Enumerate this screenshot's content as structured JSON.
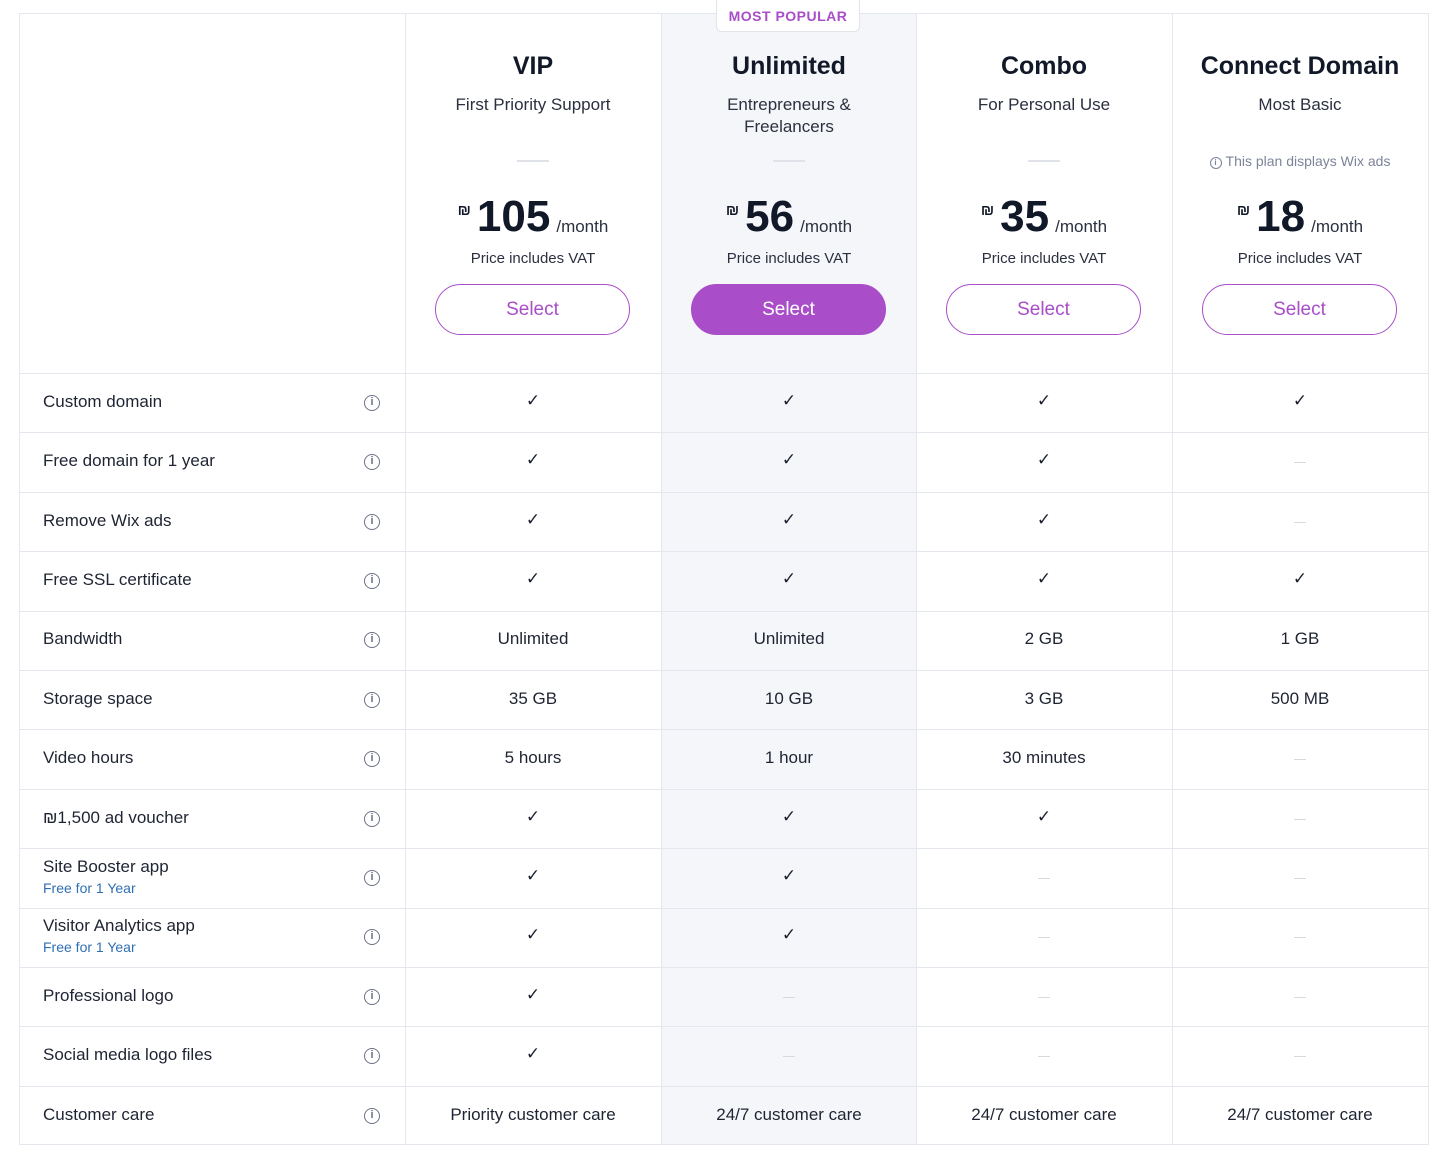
{
  "popular_badge": "MOST POPULAR",
  "colors": {
    "accent": "#a94dc9",
    "highlight_bg": "#f5f6f9",
    "note_blue": "#2f6fb3"
  },
  "plans": [
    {
      "name": "VIP",
      "subtitle": "First Priority Support",
      "ads_note": "",
      "currency": "₪",
      "price": "105",
      "period": "/month",
      "vat": "Price includes VAT",
      "button": "Select"
    },
    {
      "name": "Unlimited",
      "subtitle": "Entrepreneurs & Freelancers",
      "ads_note": "",
      "currency": "₪",
      "price": "56",
      "period": "/month",
      "vat": "Price includes VAT",
      "button": "Select"
    },
    {
      "name": "Combo",
      "subtitle": "For Personal Use",
      "ads_note": "",
      "currency": "₪",
      "price": "35",
      "period": "/month",
      "vat": "Price includes VAT",
      "button": "Select"
    },
    {
      "name": "Connect Domain",
      "subtitle": "Most Basic",
      "ads_note": "This plan displays Wix ads",
      "currency": "₪",
      "price": "18",
      "period": "/month",
      "vat": "Price includes VAT",
      "button": "Select"
    }
  ],
  "features": [
    {
      "label": "Custom domain",
      "note": "",
      "values": [
        "check",
        "check",
        "check",
        "check"
      ]
    },
    {
      "label": "Free domain for 1 year",
      "note": "",
      "values": [
        "check",
        "check",
        "check",
        "none"
      ]
    },
    {
      "label": "Remove Wix ads",
      "note": "",
      "values": [
        "check",
        "check",
        "check",
        "none"
      ]
    },
    {
      "label": "Free SSL certificate",
      "note": "",
      "values": [
        "check",
        "check",
        "check",
        "check"
      ]
    },
    {
      "label": "Bandwidth",
      "note": "",
      "values": [
        "Unlimited",
        "Unlimited",
        "2 GB",
        "1 GB"
      ]
    },
    {
      "label": "Storage space",
      "note": "",
      "values": [
        "35 GB",
        "10 GB",
        "3 GB",
        "500 MB"
      ]
    },
    {
      "label": "Video hours",
      "note": "",
      "values": [
        "5 hours",
        "1 hour",
        "30 minutes",
        "none"
      ]
    },
    {
      "label": "₪1,500 ad voucher",
      "note": "",
      "values": [
        "check",
        "check",
        "check",
        "none"
      ]
    },
    {
      "label": "Site Booster app",
      "note": "Free for 1 Year",
      "values": [
        "check",
        "check",
        "none",
        "none"
      ]
    },
    {
      "label": "Visitor Analytics app",
      "note": "Free for 1 Year",
      "values": [
        "check",
        "check",
        "none",
        "none"
      ]
    },
    {
      "label": "Professional logo",
      "note": "",
      "values": [
        "check",
        "none",
        "none",
        "none"
      ]
    },
    {
      "label": "Social media logo files",
      "note": "",
      "values": [
        "check",
        "none",
        "none",
        "none"
      ]
    },
    {
      "label": "Customer care",
      "note": "",
      "values": [
        "Priority customer care",
        "24/7 customer care",
        "24/7 customer care",
        "24/7 customer care"
      ]
    }
  ],
  "icons": {
    "check": "checkmark-icon",
    "none": "dash-icon",
    "info": "info-icon"
  }
}
